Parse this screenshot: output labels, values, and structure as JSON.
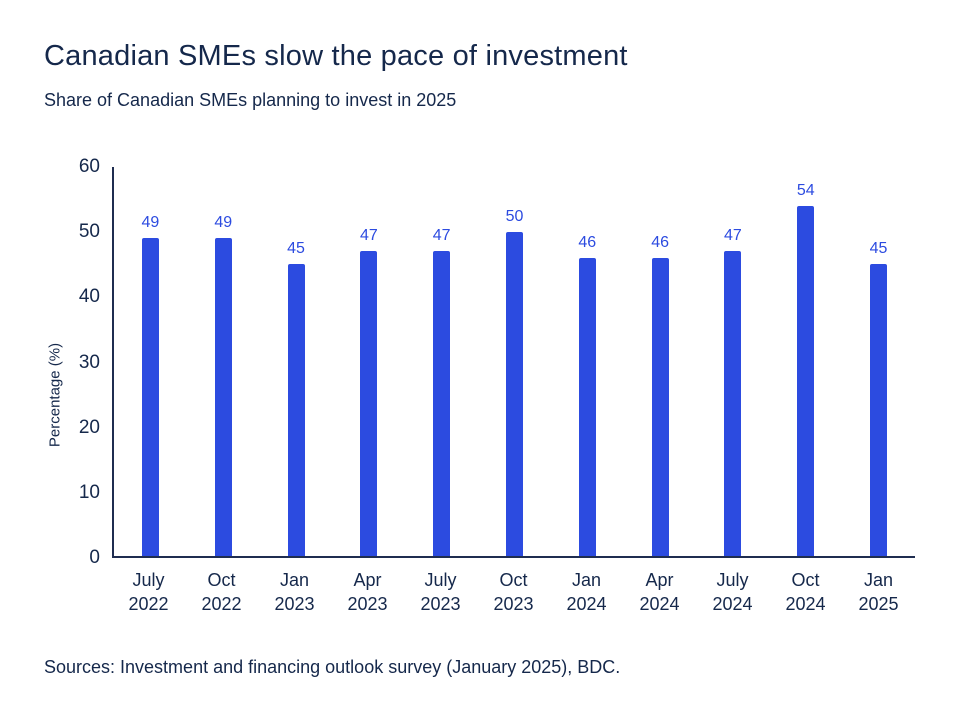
{
  "header": {
    "title": "Canadian SMEs slow the pace of investment",
    "subtitle": "Share of Canadian SMEs planning to invest in 2025"
  },
  "footer": {
    "source": "Sources: Investment and financing outlook survey (January 2025), BDC."
  },
  "colors": {
    "bar": "#2c4be0",
    "value_label": "#2c4be0",
    "axis": "#1f2d50",
    "text": "#15284b"
  },
  "chart_data": {
    "type": "bar",
    "title": "Canadian SMEs slow the pace of investment",
    "subtitle": "Share of Canadian SMEs planning to invest in 2025",
    "categories": [
      "July 2022",
      "Oct 2022",
      "Jan 2023",
      "Apr 2023",
      "July 2023",
      "Oct 2023",
      "Jan 2024",
      "Apr 2024",
      "July 2024",
      "Oct 2024",
      "Jan 2025"
    ],
    "values": [
      49,
      49,
      45,
      47,
      47,
      50,
      46,
      46,
      47,
      54,
      45
    ],
    "xlabel": "",
    "ylabel": "Percentage (%)",
    "ylim": [
      0,
      60
    ],
    "yticks": [
      0,
      10,
      20,
      30,
      40,
      50,
      60
    ],
    "grid": false,
    "legend": "none",
    "data_labels": true
  }
}
